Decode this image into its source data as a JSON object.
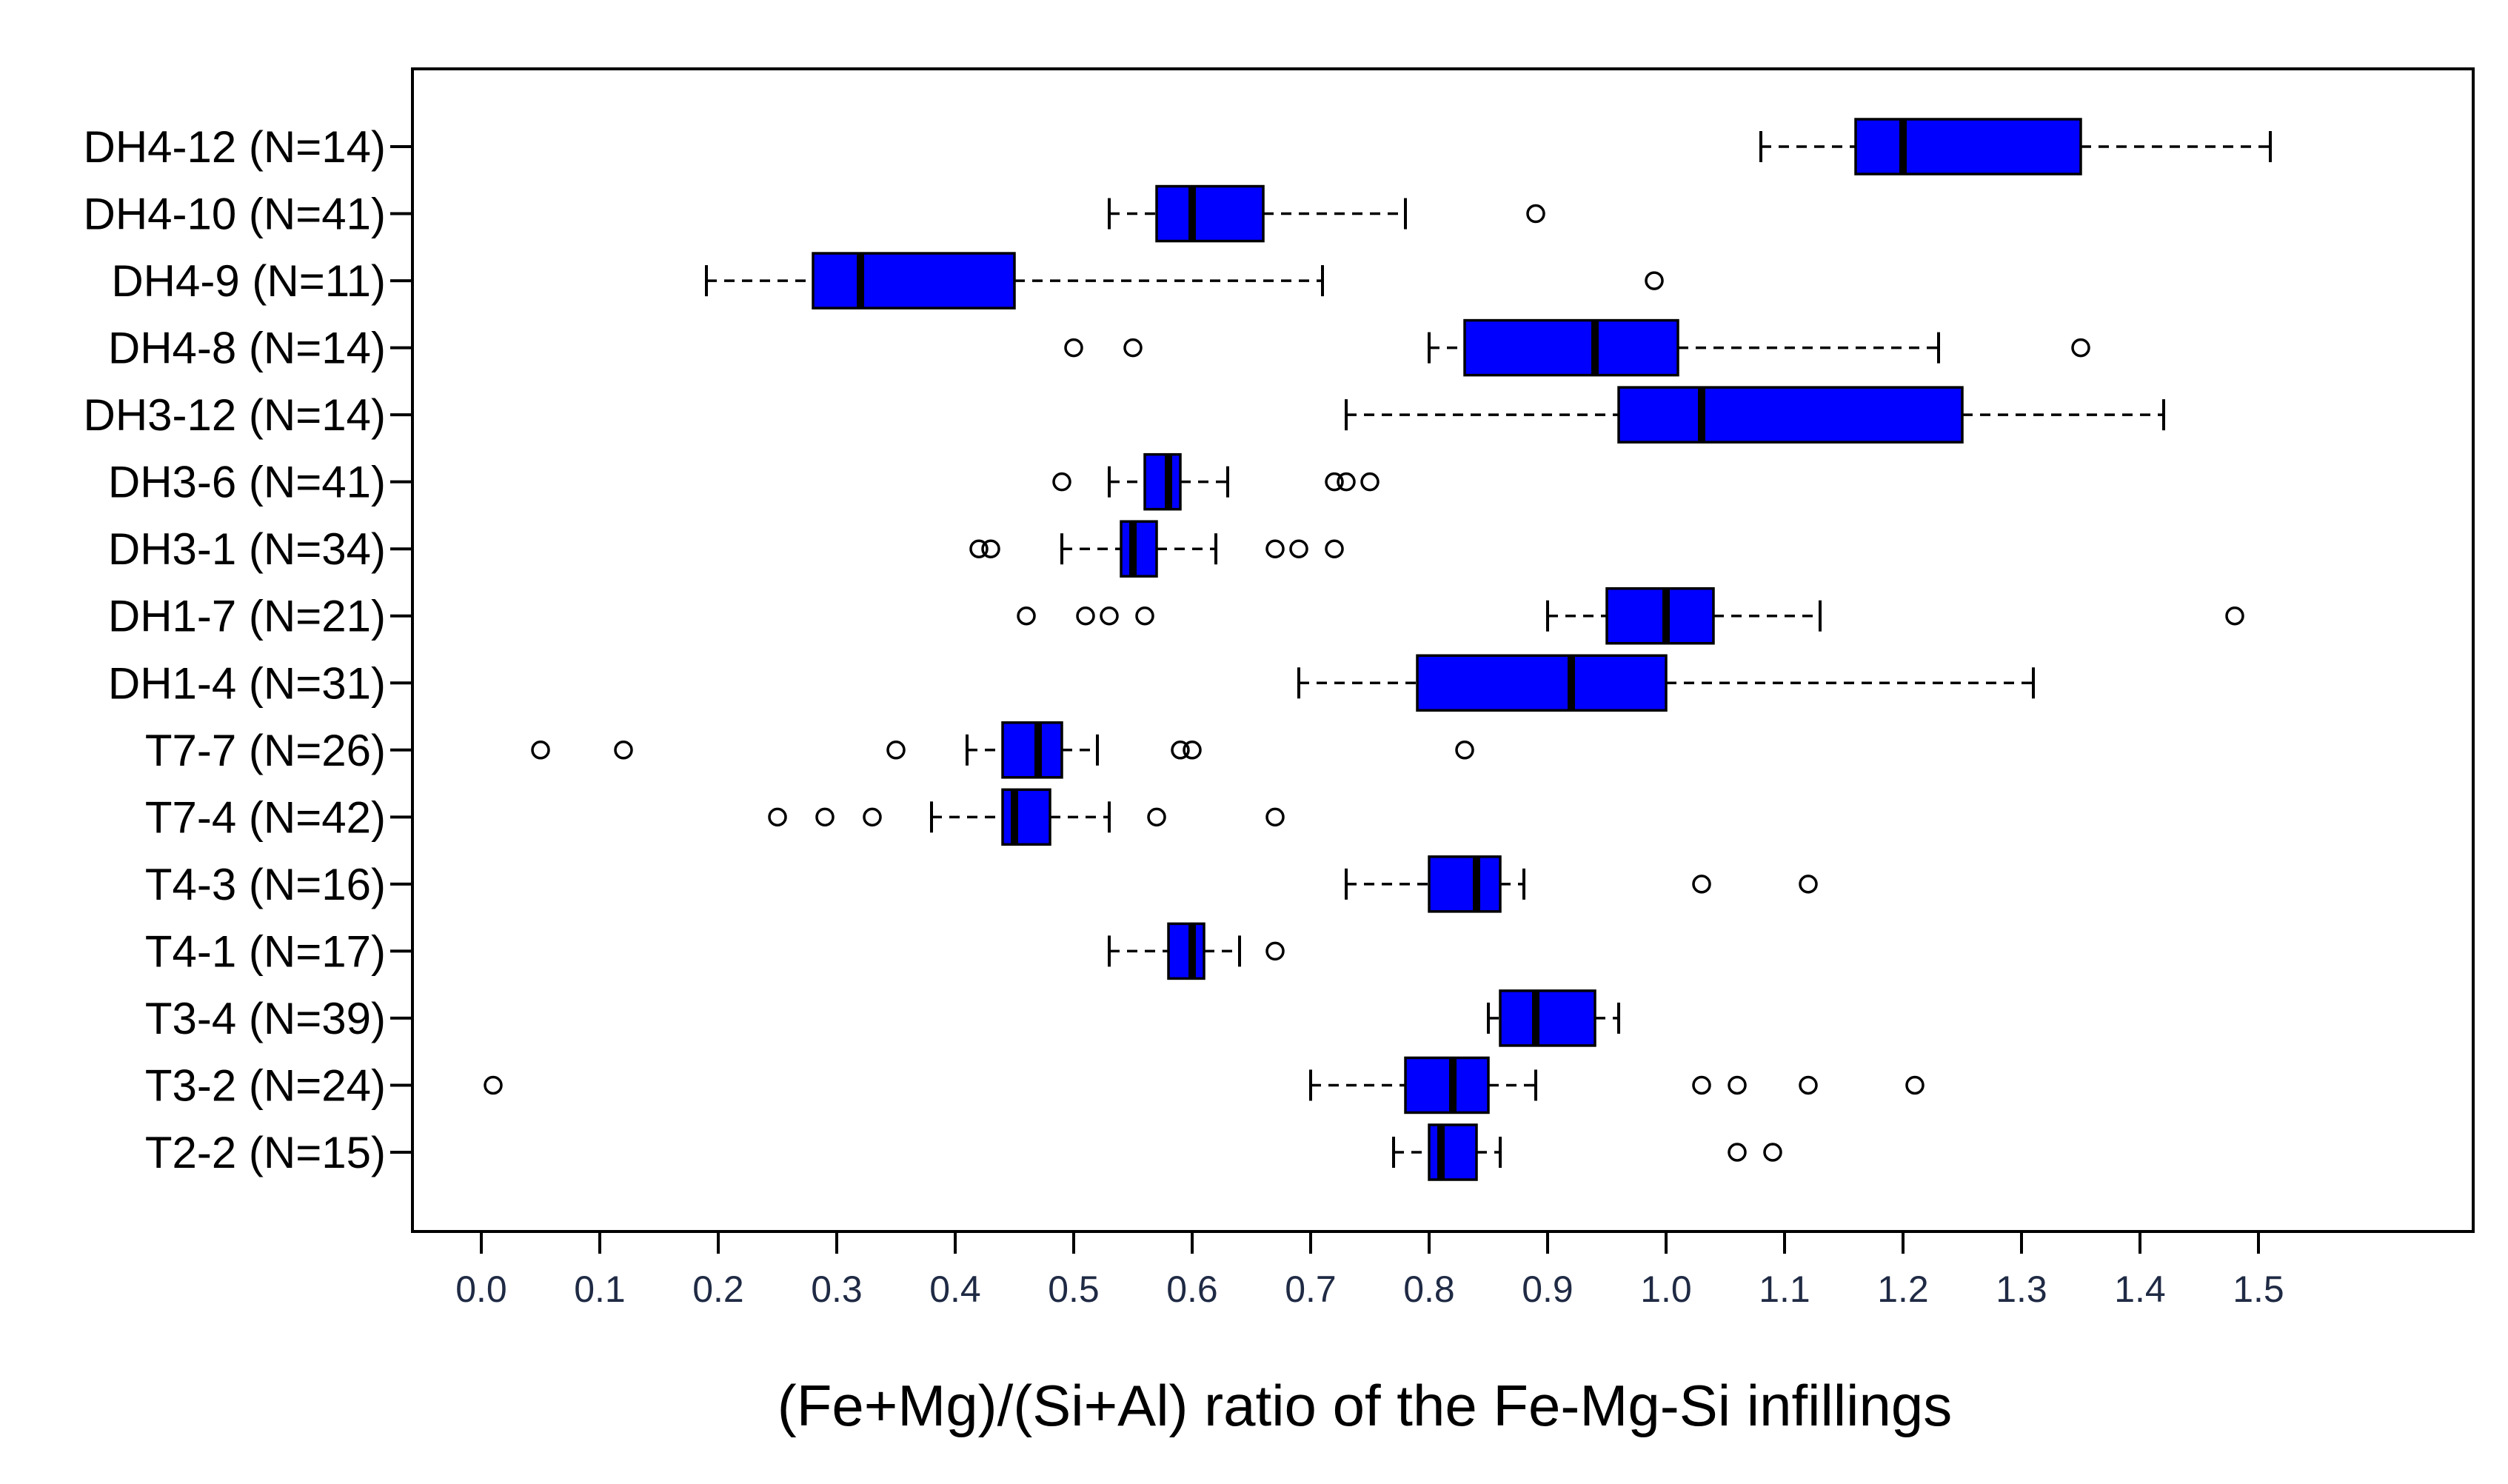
{
  "chart_data": {
    "type": "boxplot",
    "orientation": "horizontal",
    "xlabel": "(Fe+Mg)/(Si+Al) ratio of the Fe-Mg-Si infillings",
    "xlim": [
      -0.06,
      1.67
    ],
    "xticks": [
      0.0,
      0.1,
      0.2,
      0.3,
      0.4,
      0.5,
      0.6,
      0.7,
      0.8,
      0.9,
      1.0,
      1.1,
      1.2,
      1.3,
      1.4,
      1.5
    ],
    "xtick_labels": [
      "0.0",
      "0.1",
      "0.2",
      "0.3",
      "0.4",
      "0.5",
      "0.6",
      "0.7",
      "0.8",
      "0.9",
      "1.0",
      "1.1",
      "1.2",
      "1.3",
      "1.4",
      "1.5"
    ],
    "box_color": "#0000ff",
    "groups": [
      {
        "label": "DH4-12 (N=14)",
        "whisker_low": 1.08,
        "q1": 1.16,
        "median": 1.2,
        "q3": 1.35,
        "whisker_high": 1.51,
        "outliers": []
      },
      {
        "label": "DH4-10 (N=41)",
        "whisker_low": 0.53,
        "q1": 0.57,
        "median": 0.6,
        "q3": 0.66,
        "whisker_high": 0.78,
        "outliers": [
          0.89
        ]
      },
      {
        "label": "DH4-9 (N=11)",
        "whisker_low": 0.19,
        "q1": 0.28,
        "median": 0.32,
        "q3": 0.45,
        "whisker_high": 0.71,
        "outliers": [
          0.99
        ]
      },
      {
        "label": "DH4-8 (N=14)",
        "whisker_low": 0.8,
        "q1": 0.83,
        "median": 0.94,
        "q3": 1.01,
        "whisker_high": 1.23,
        "outliers": [
          0.5,
          0.55,
          1.35
        ]
      },
      {
        "label": "DH3-12 (N=14)",
        "whisker_low": 0.73,
        "q1": 0.96,
        "median": 1.03,
        "q3": 1.25,
        "whisker_high": 1.42,
        "outliers": []
      },
      {
        "label": "DH3-6 (N=41)",
        "whisker_low": 0.53,
        "q1": 0.56,
        "median": 0.58,
        "q3": 0.59,
        "whisker_high": 0.63,
        "outliers": [
          0.49,
          0.72,
          0.73,
          0.75
        ]
      },
      {
        "label": "DH3-1 (N=34)",
        "whisker_low": 0.49,
        "q1": 0.54,
        "median": 0.55,
        "q3": 0.57,
        "whisker_high": 0.62,
        "outliers": [
          0.42,
          0.43,
          0.67,
          0.69,
          0.72
        ]
      },
      {
        "label": "DH1-7 (N=21)",
        "whisker_low": 0.9,
        "q1": 0.95,
        "median": 1.0,
        "q3": 1.04,
        "whisker_high": 1.13,
        "outliers": [
          0.46,
          0.51,
          0.53,
          0.56,
          1.48
        ]
      },
      {
        "label": "DH1-4 (N=31)",
        "whisker_low": 0.69,
        "q1": 0.79,
        "median": 0.92,
        "q3": 1.0,
        "whisker_high": 1.31,
        "outliers": []
      },
      {
        "label": "T7-7 (N=26)",
        "whisker_low": 0.41,
        "q1": 0.44,
        "median": 0.47,
        "q3": 0.49,
        "whisker_high": 0.52,
        "outliers": [
          0.05,
          0.12,
          0.35,
          0.59,
          0.6,
          0.83
        ]
      },
      {
        "label": "T7-4 (N=42)",
        "whisker_low": 0.38,
        "q1": 0.44,
        "median": 0.45,
        "q3": 0.48,
        "whisker_high": 0.53,
        "outliers": [
          0.25,
          0.29,
          0.33,
          0.57,
          0.67
        ]
      },
      {
        "label": "T4-3 (N=16)",
        "whisker_low": 0.73,
        "q1": 0.8,
        "median": 0.84,
        "q3": 0.86,
        "whisker_high": 0.88,
        "outliers": [
          1.03,
          1.12
        ]
      },
      {
        "label": "T4-1 (N=17)",
        "whisker_low": 0.53,
        "q1": 0.58,
        "median": 0.6,
        "q3": 0.61,
        "whisker_high": 0.64,
        "outliers": [
          0.67
        ]
      },
      {
        "label": "T3-4 (N=39)",
        "whisker_low": 0.85,
        "q1": 0.86,
        "median": 0.89,
        "q3": 0.94,
        "whisker_high": 0.96,
        "outliers": []
      },
      {
        "label": "T3-2 (N=24)",
        "whisker_low": 0.7,
        "q1": 0.78,
        "median": 0.82,
        "q3": 0.85,
        "whisker_high": 0.89,
        "outliers": [
          0.01,
          1.03,
          1.06,
          1.12,
          1.21
        ]
      },
      {
        "label": "T2-2 (N=15)",
        "whisker_low": 0.77,
        "q1": 0.8,
        "median": 0.81,
        "q3": 0.84,
        "whisker_high": 0.86,
        "outliers": [
          1.06,
          1.09
        ]
      }
    ]
  }
}
